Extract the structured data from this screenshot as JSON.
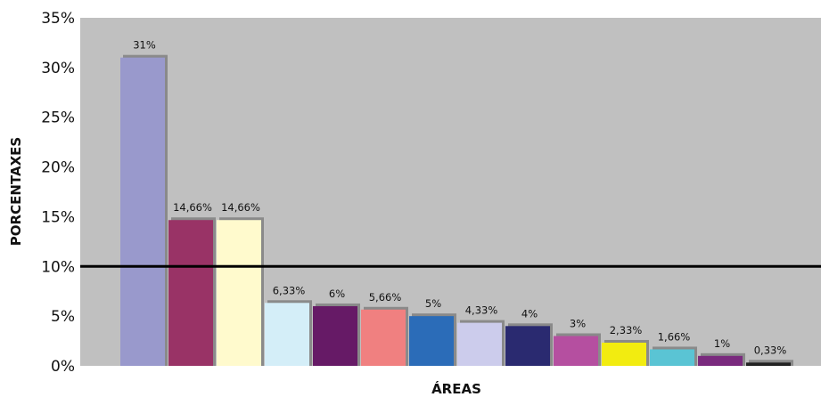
{
  "chart_data": {
    "type": "bar",
    "title": "",
    "xlabel": "ÁREAS",
    "ylabel": "PORCENTAXES",
    "ylim": [
      0,
      35
    ],
    "yticks": [
      "0%",
      "5%",
      "10%",
      "15%",
      "20%",
      "25%",
      "30%",
      "35%"
    ],
    "ytick_values": [
      0,
      5,
      10,
      15,
      20,
      25,
      30,
      35
    ],
    "reference_line": 10,
    "plot_background": "#c0c0c0",
    "grid": false,
    "legend": "none",
    "values": [
      31,
      14.66,
      14.66,
      6.33,
      6,
      5.66,
      5,
      4.33,
      4,
      3,
      2.33,
      1.66,
      1,
      0.33
    ],
    "labels": [
      "31%",
      "14,66%",
      "14,66%",
      "6,33%",
      "6%",
      "5,66%",
      "5%",
      "4,33%",
      "4%",
      "3%",
      "2,33%",
      "1,66%",
      "1%",
      "0,33%"
    ],
    "colors": [
      "#9999cc",
      "#993366",
      "#fffacd",
      "#d4eef8",
      "#661a66",
      "#f08080",
      "#2b6cb8",
      "#ccccec",
      "#2a2a70",
      "#b54fa0",
      "#f2ec10",
      "#5ac4d4",
      "#7a2a7e",
      "#222222"
    ]
  }
}
